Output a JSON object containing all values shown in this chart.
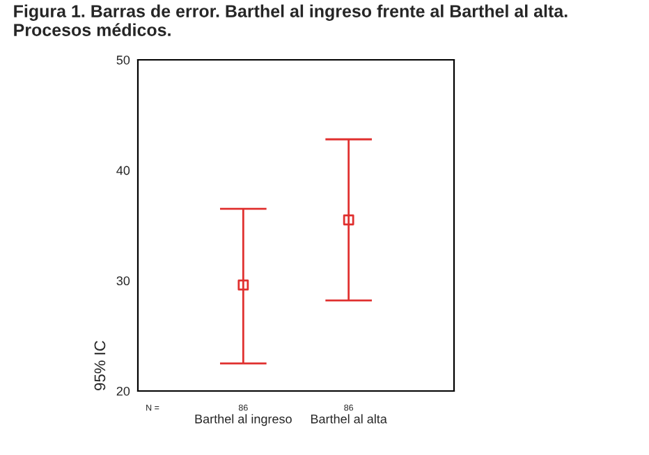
{
  "chart_data": {
    "type": "scatter",
    "title": "Figura 1. Barras de error. Barthel al ingreso frente al Barthel al alta.\nProcesos médicos.",
    "ylabel": "95% IC",
    "categories": [
      "Barthel al ingreso",
      "Barthel al alta"
    ],
    "values": [
      29.6,
      35.5
    ],
    "errors": [
      [
        22.5,
        36.5
      ],
      [
        28.2,
        42.8
      ]
    ],
    "color": "#e0302f",
    "marker": "square",
    "grid": false,
    "ylim": [
      20,
      50
    ],
    "yticks": [
      20,
      30,
      40,
      50
    ],
    "annotations": [
      "N =",
      "86",
      "86"
    ]
  }
}
